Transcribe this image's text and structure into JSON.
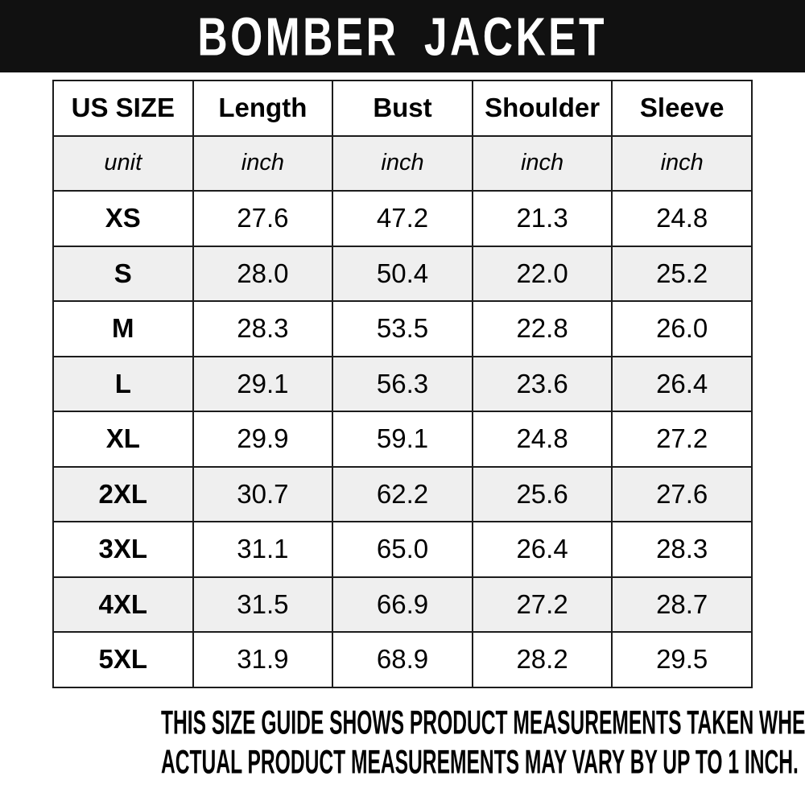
{
  "title": "BOMBER JACKET",
  "table": {
    "columns": [
      "US SIZE",
      "Length",
      "Bust",
      "Shoulder",
      "Sleeve"
    ],
    "unit_row": [
      "unit",
      "inch",
      "inch",
      "inch",
      "inch"
    ],
    "rows": [
      {
        "size": "XS",
        "length": "27.6",
        "bust": "47.2",
        "shoulder": "21.3",
        "sleeve": "24.8"
      },
      {
        "size": "S",
        "length": "28.0",
        "bust": "50.4",
        "shoulder": "22.0",
        "sleeve": "25.2"
      },
      {
        "size": "M",
        "length": "28.3",
        "bust": "53.5",
        "shoulder": "22.8",
        "sleeve": "26.0"
      },
      {
        "size": "L",
        "length": "29.1",
        "bust": "56.3",
        "shoulder": "23.6",
        "sleeve": "26.4"
      },
      {
        "size": "XL",
        "length": "29.9",
        "bust": "59.1",
        "shoulder": "24.8",
        "sleeve": "27.2"
      },
      {
        "size": "2XL",
        "length": "30.7",
        "bust": "62.2",
        "shoulder": "25.6",
        "sleeve": "27.6"
      },
      {
        "size": "3XL",
        "length": "31.1",
        "bust": "65.0",
        "shoulder": "26.4",
        "sleeve": "28.3"
      },
      {
        "size": "4XL",
        "length": "31.5",
        "bust": "66.9",
        "shoulder": "27.2",
        "sleeve": "28.7"
      },
      {
        "size": "5XL",
        "length": "31.9",
        "bust": "68.9",
        "shoulder": "28.2",
        "sleeve": "29.5"
      }
    ]
  },
  "footer": {
    "line1": "THIS SIZE GUIDE SHOWS PRODUCT MEASUREMENTS TAKEN WHEN PRODUCTS ARE LAID FLAT.",
    "line2": "ACTUAL PRODUCT MEASUREMENTS MAY VARY BY UP TO 1 INCH."
  },
  "colors": {
    "header_bg": "#111111",
    "header_text": "#ffffff",
    "row_alt_bg": "#efefef",
    "border": "#1c1c1c",
    "text": "#000000",
    "page_bg": "#ffffff"
  }
}
